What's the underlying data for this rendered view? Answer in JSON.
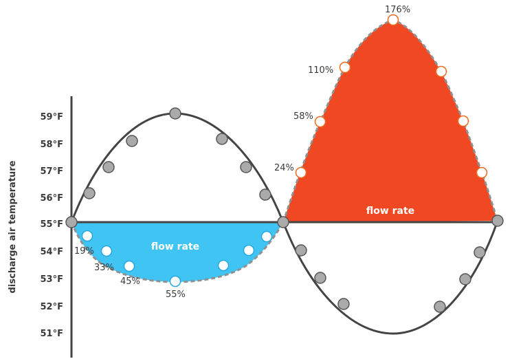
{
  "axis": {
    "title": "discharge air temperature",
    "ticks": [
      "59°F",
      "58°F",
      "57°F",
      "56°F",
      "55°F",
      "54°F",
      "53°F",
      "52°F",
      "51°F"
    ]
  },
  "regions": {
    "cooling": {
      "label": "flow rate",
      "color": "#40c4f4"
    },
    "heating": {
      "label": "flow rate",
      "color": "#f04823"
    }
  },
  "flow_labels": {
    "cooling": [
      "19%",
      "33%",
      "45%",
      "55%"
    ],
    "heating": [
      "24%",
      "58%",
      "110%",
      "176%"
    ]
  },
  "colors": {
    "curve": "#444444",
    "gray_marker": "#aaaaaa",
    "cool_marker_stroke": "#2aa7de",
    "heat_marker_stroke": "#ef6a1f"
  }
}
